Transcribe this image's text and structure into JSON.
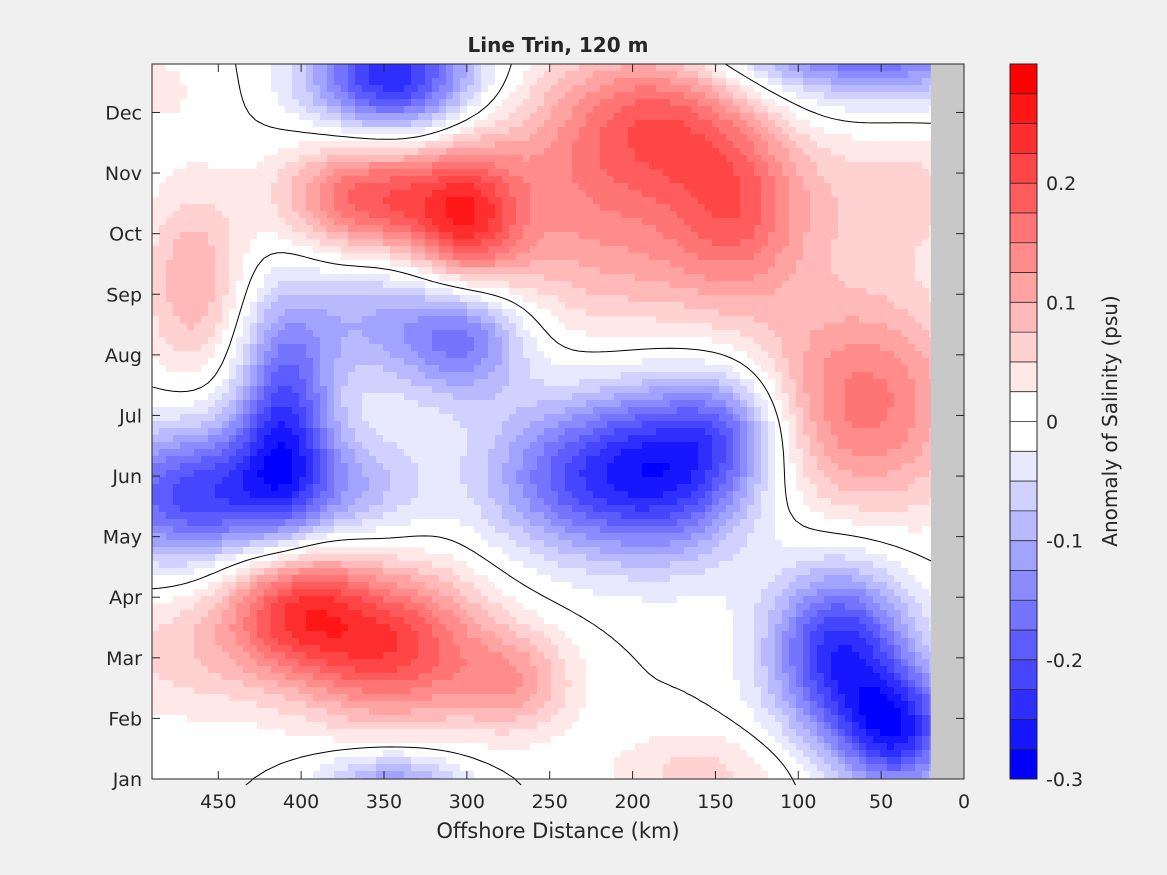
{
  "chart_data": {
    "type": "heatmap",
    "title": "Line Trin, 120 m",
    "xlabel": "Offshore Distance (km)",
    "ylabel": "",
    "x_direction": "reversed",
    "xlim": [
      490,
      0
    ],
    "x_ticks": [
      450,
      400,
      350,
      300,
      250,
      200,
      150,
      100,
      50,
      0
    ],
    "y_ticks": [
      "Jan",
      "Feb",
      "Mar",
      "Apr",
      "May",
      "Jun",
      "Jul",
      "Aug",
      "Sep",
      "Oct",
      "Nov",
      "Dec"
    ],
    "no_data_region_km": [
      0,
      20
    ],
    "colorbar": {
      "label": "Anomaly of Salinity (psu)",
      "clim": [
        -0.3,
        0.3
      ],
      "levels_step": 0.025,
      "ticks": [
        -0.3,
        -0.2,
        -0.1,
        0,
        0.1,
        0.2
      ],
      "tick_labels": [
        "-0.3",
        "-0.2",
        "-0.1",
        "0",
        "0.1",
        "0.2"
      ],
      "negative_color": "#0000ff",
      "zero_color": "#ffffff",
      "positive_color": "#ff0000"
    },
    "zero_contour": true,
    "features": [
      {
        "x": 405,
        "month": 2.9,
        "value": 0.19,
        "sx": 30,
        "sy": 0.8
      },
      {
        "x": 345,
        "month": 2.2,
        "value": 0.21,
        "sx": 40,
        "sy": 0.9
      },
      {
        "x": 270,
        "month": 1.6,
        "value": 0.1,
        "sx": 25,
        "sy": 0.6
      },
      {
        "x": 470,
        "month": 2.1,
        "value": 0.06,
        "sx": 40,
        "sy": 0.8
      },
      {
        "x": 160,
        "month": 0.1,
        "value": 0.06,
        "sx": 40,
        "sy": 0.5
      },
      {
        "x": 460,
        "month": 4.7,
        "value": -0.22,
        "sx": 45,
        "sy": 0.8
      },
      {
        "x": 410,
        "month": 5.9,
        "value": -0.2,
        "sx": 20,
        "sy": 1.3
      },
      {
        "x": 300,
        "month": 7.3,
        "value": -0.14,
        "sx": 25,
        "sy": 0.7
      },
      {
        "x": 235,
        "month": 5.0,
        "value": -0.17,
        "sx": 40,
        "sy": 0.9
      },
      {
        "x": 175,
        "month": 5.1,
        "value": -0.2,
        "sx": 35,
        "sy": 1.0
      },
      {
        "x": 140,
        "month": 5.8,
        "value": -0.1,
        "sx": 25,
        "sy": 0.7
      },
      {
        "x": 350,
        "month": 7.6,
        "value": -0.1,
        "sx": 40,
        "sy": 0.8
      },
      {
        "x": 365,
        "month": 4.8,
        "value": -0.08,
        "sx": 30,
        "sy": 0.7
      },
      {
        "x": 75,
        "month": 2.1,
        "value": -0.24,
        "sx": 30,
        "sy": 1.0
      },
      {
        "x": 40,
        "month": 0.8,
        "value": -0.23,
        "sx": 25,
        "sy": 0.7
      },
      {
        "x": 345,
        "month": -0.1,
        "value": -0.13,
        "sx": 30,
        "sy": 0.4
      },
      {
        "x": 345,
        "month": 11.6,
        "value": -0.25,
        "sx": 35,
        "sy": 0.7
      },
      {
        "x": 60,
        "month": 12.3,
        "value": -0.22,
        "sx": 70,
        "sy": 0.7
      },
      {
        "x": 360,
        "month": 9.6,
        "value": 0.19,
        "sx": 35,
        "sy": 0.7
      },
      {
        "x": 300,
        "month": 9.2,
        "value": 0.2,
        "sx": 25,
        "sy": 0.9
      },
      {
        "x": 465,
        "month": 8.2,
        "value": 0.1,
        "sx": 22,
        "sy": 1.1
      },
      {
        "x": 180,
        "month": 10.9,
        "value": 0.16,
        "sx": 40,
        "sy": 1.0
      },
      {
        "x": 135,
        "month": 9.5,
        "value": 0.13,
        "sx": 30,
        "sy": 1.0
      },
      {
        "x": 235,
        "month": 10.0,
        "value": 0.09,
        "sx": 40,
        "sy": 1.3
      },
      {
        "x": 180,
        "month": 8.5,
        "value": 0.07,
        "sx": 60,
        "sy": 1.0
      },
      {
        "x": 60,
        "month": 6.2,
        "value": 0.16,
        "sx": 45,
        "sy": 1.3
      },
      {
        "x": 40,
        "month": 9.7,
        "value": 0.06,
        "sx": 40,
        "sy": 0.8
      },
      {
        "x": 490,
        "month": 11.4,
        "value": 0.03,
        "sx": 30,
        "sy": 0.6
      }
    ]
  }
}
